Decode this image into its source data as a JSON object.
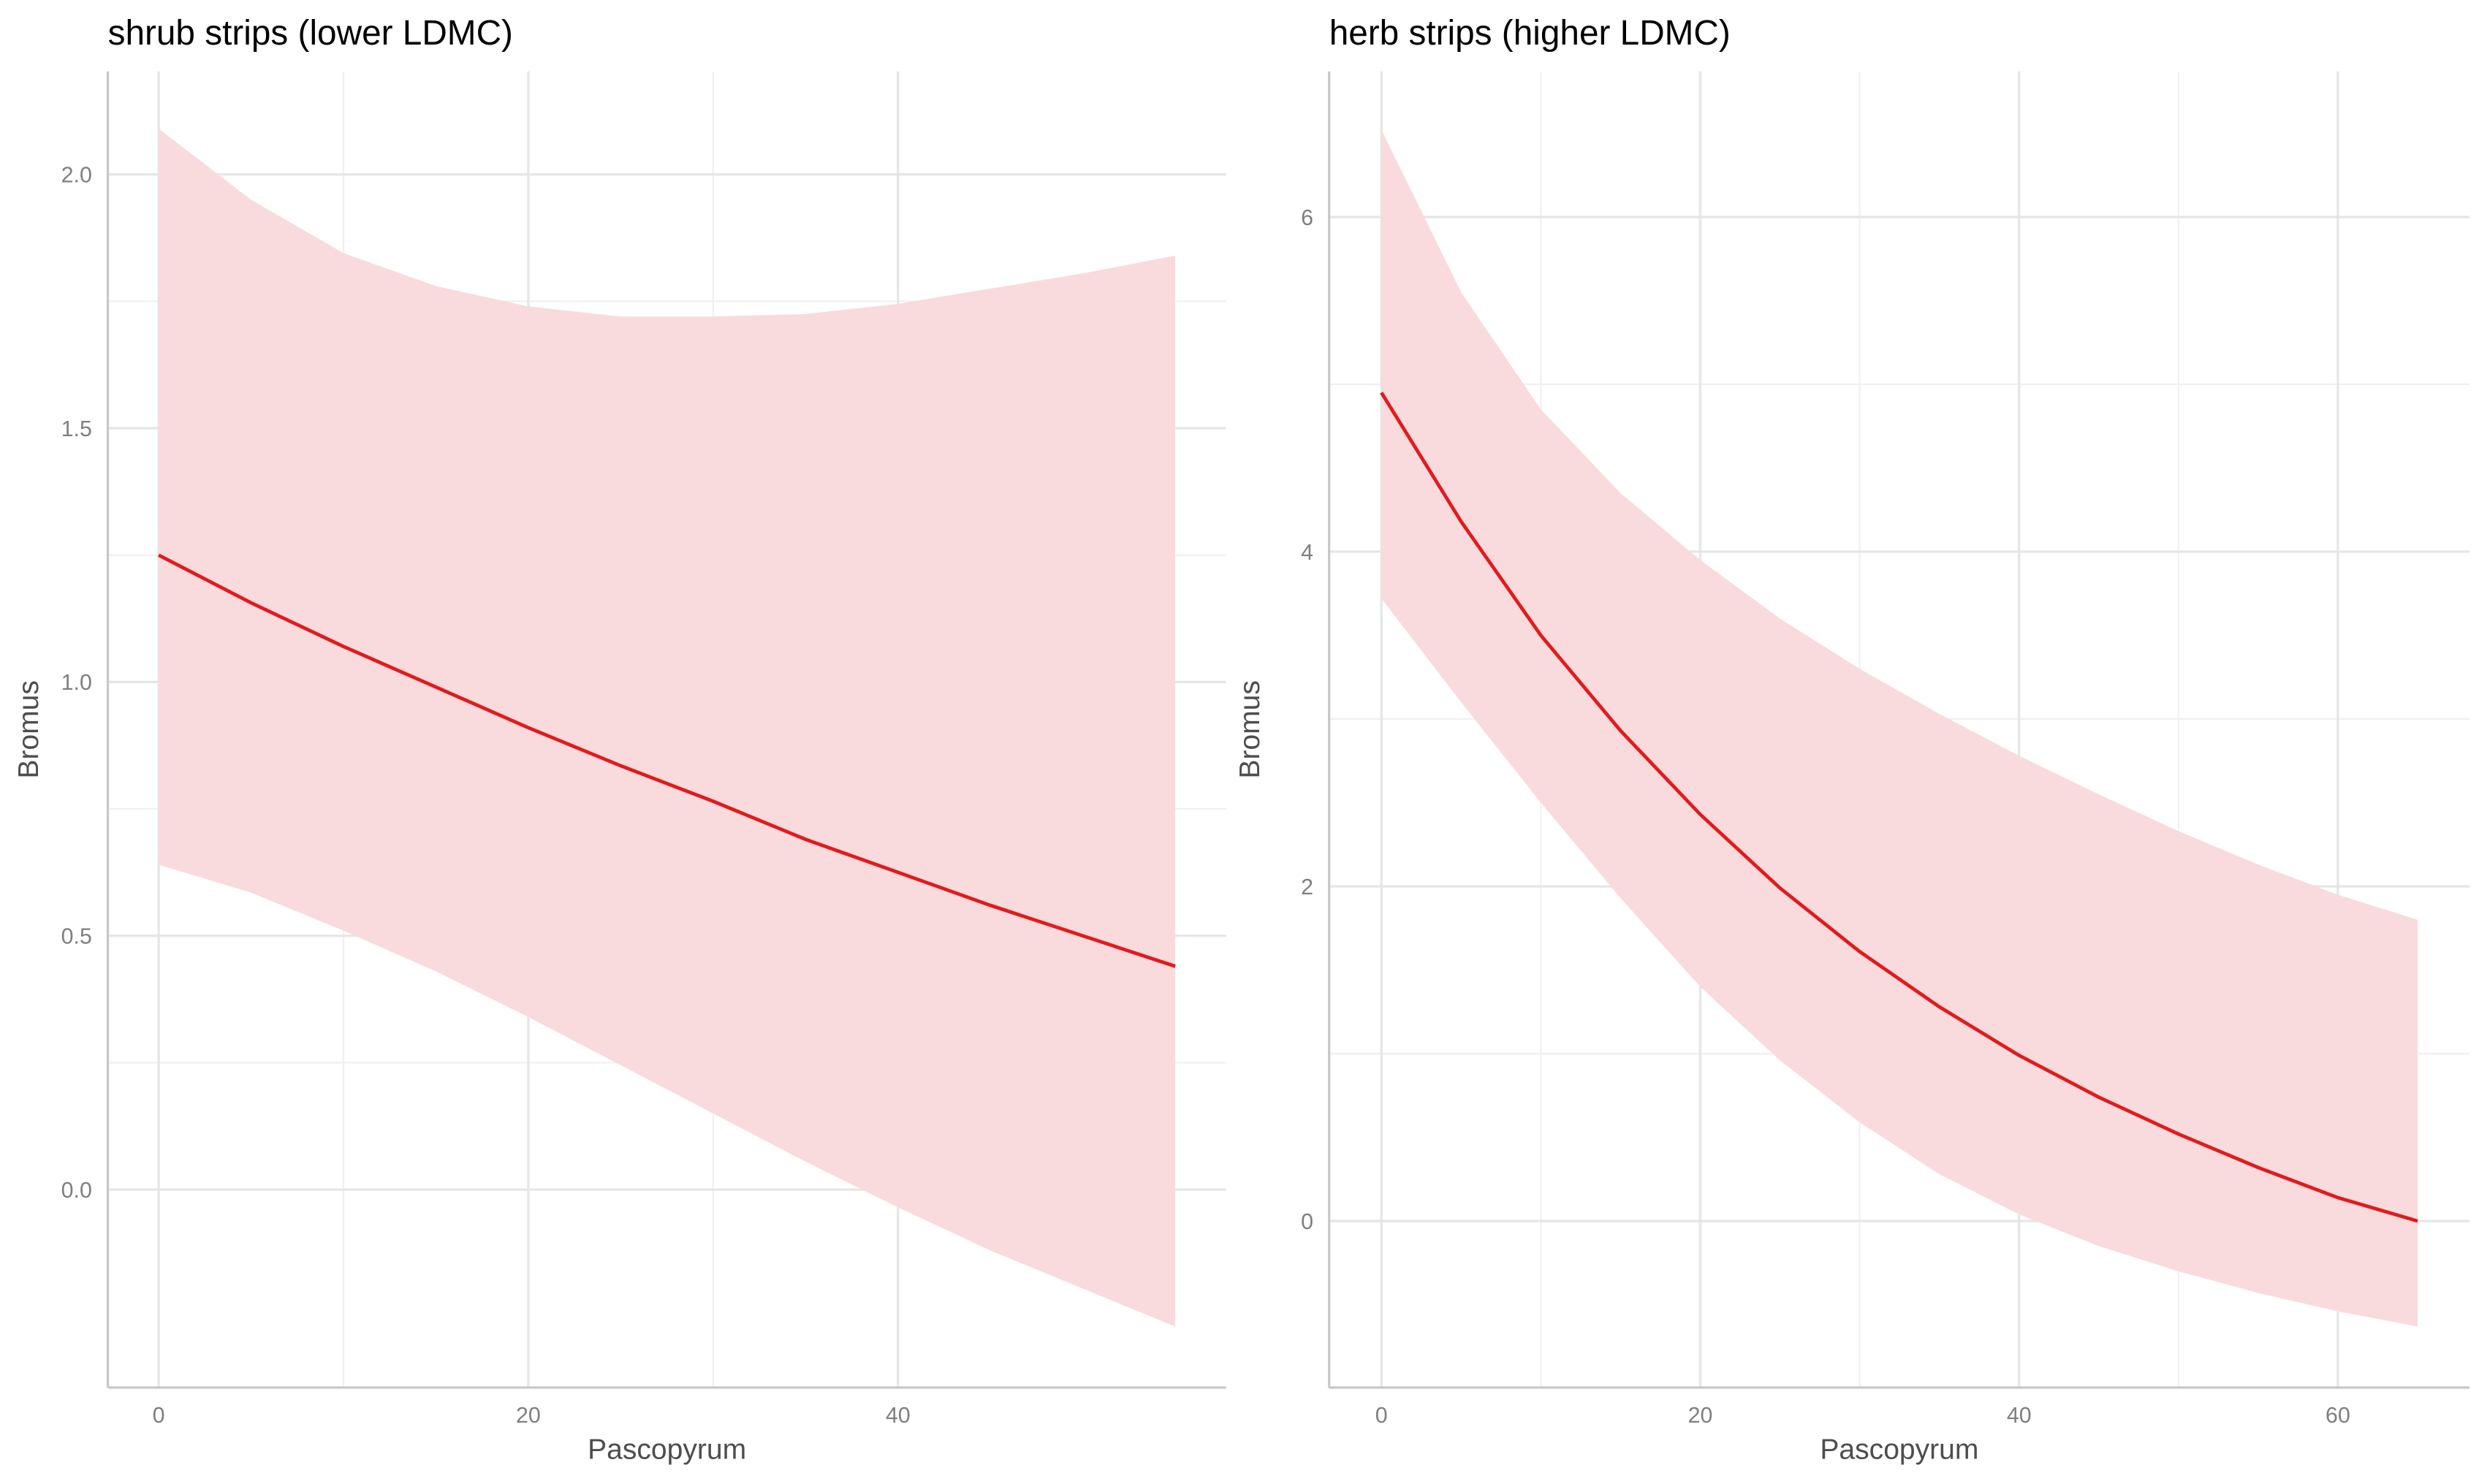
{
  "chart_data": [
    {
      "type": "line",
      "title": "shrub strips (lower LDMC)",
      "xlabel": "Pascopyrum",
      "ylabel": "Bromus",
      "x": [
        0,
        5,
        10,
        15,
        20,
        25,
        30,
        35,
        40,
        45,
        50,
        55
      ],
      "values": [
        1.25,
        1.156,
        1.07,
        0.99,
        0.91,
        0.835,
        0.765,
        0.69,
        0.625,
        0.56,
        0.5,
        0.44
      ],
      "ci_upper": [
        2.09,
        1.95,
        1.845,
        1.78,
        1.74,
        1.72,
        1.72,
        1.725,
        1.745,
        1.775,
        1.805,
        1.84
      ],
      "ci_lower": [
        0.64,
        0.585,
        0.51,
        0.43,
        0.34,
        0.245,
        0.15,
        0.055,
        -0.035,
        -0.12,
        -0.195,
        -0.27
      ],
      "color": "#e31a1c",
      "band_color": "#f9dbdd",
      "xlim": [
        -2.75,
        57.75
      ],
      "ylim": [
        -0.39,
        2.203
      ],
      "xticks": [
        0,
        20,
        40
      ],
      "yticks": [
        {
          "value": 0,
          "label": "0.0"
        },
        0.5,
        {
          "value": 1,
          "label": "1.0"
        },
        1.5,
        {
          "value": 2,
          "label": "2.0"
        }
      ],
      "grid": true,
      "minor_grid": true
    },
    {
      "type": "line",
      "title": "herb strips (higher LDMC)",
      "xlabel": "Pascopyrum",
      "ylabel": "Bromus",
      "x": [
        0,
        5,
        10,
        15,
        20,
        25,
        30,
        35,
        40,
        45,
        50,
        55,
        60,
        65
      ],
      "values": [
        4.95,
        4.18,
        3.5,
        2.93,
        2.43,
        1.99,
        1.61,
        1.28,
        0.99,
        0.74,
        0.52,
        0.32,
        0.14,
        0.0
      ],
      "ci_upper": [
        6.52,
        5.55,
        4.85,
        4.35,
        3.95,
        3.6,
        3.3,
        3.03,
        2.78,
        2.55,
        2.33,
        2.13,
        1.95,
        1.8
      ],
      "ci_lower": [
        3.72,
        3.1,
        2.5,
        1.93,
        1.4,
        0.96,
        0.59,
        0.28,
        0.04,
        -0.15,
        -0.3,
        -0.43,
        -0.54,
        -0.63
      ],
      "color": "#e31a1c",
      "band_color": "#f9dbdd",
      "xlim": [
        -3.28,
        68.26
      ],
      "ylim": [
        -0.995,
        6.87
      ],
      "xticks": [
        0,
        20,
        40,
        60
      ],
      "yticks": [
        0,
        2,
        4,
        6
      ],
      "grid": true,
      "minor_grid": true
    }
  ]
}
